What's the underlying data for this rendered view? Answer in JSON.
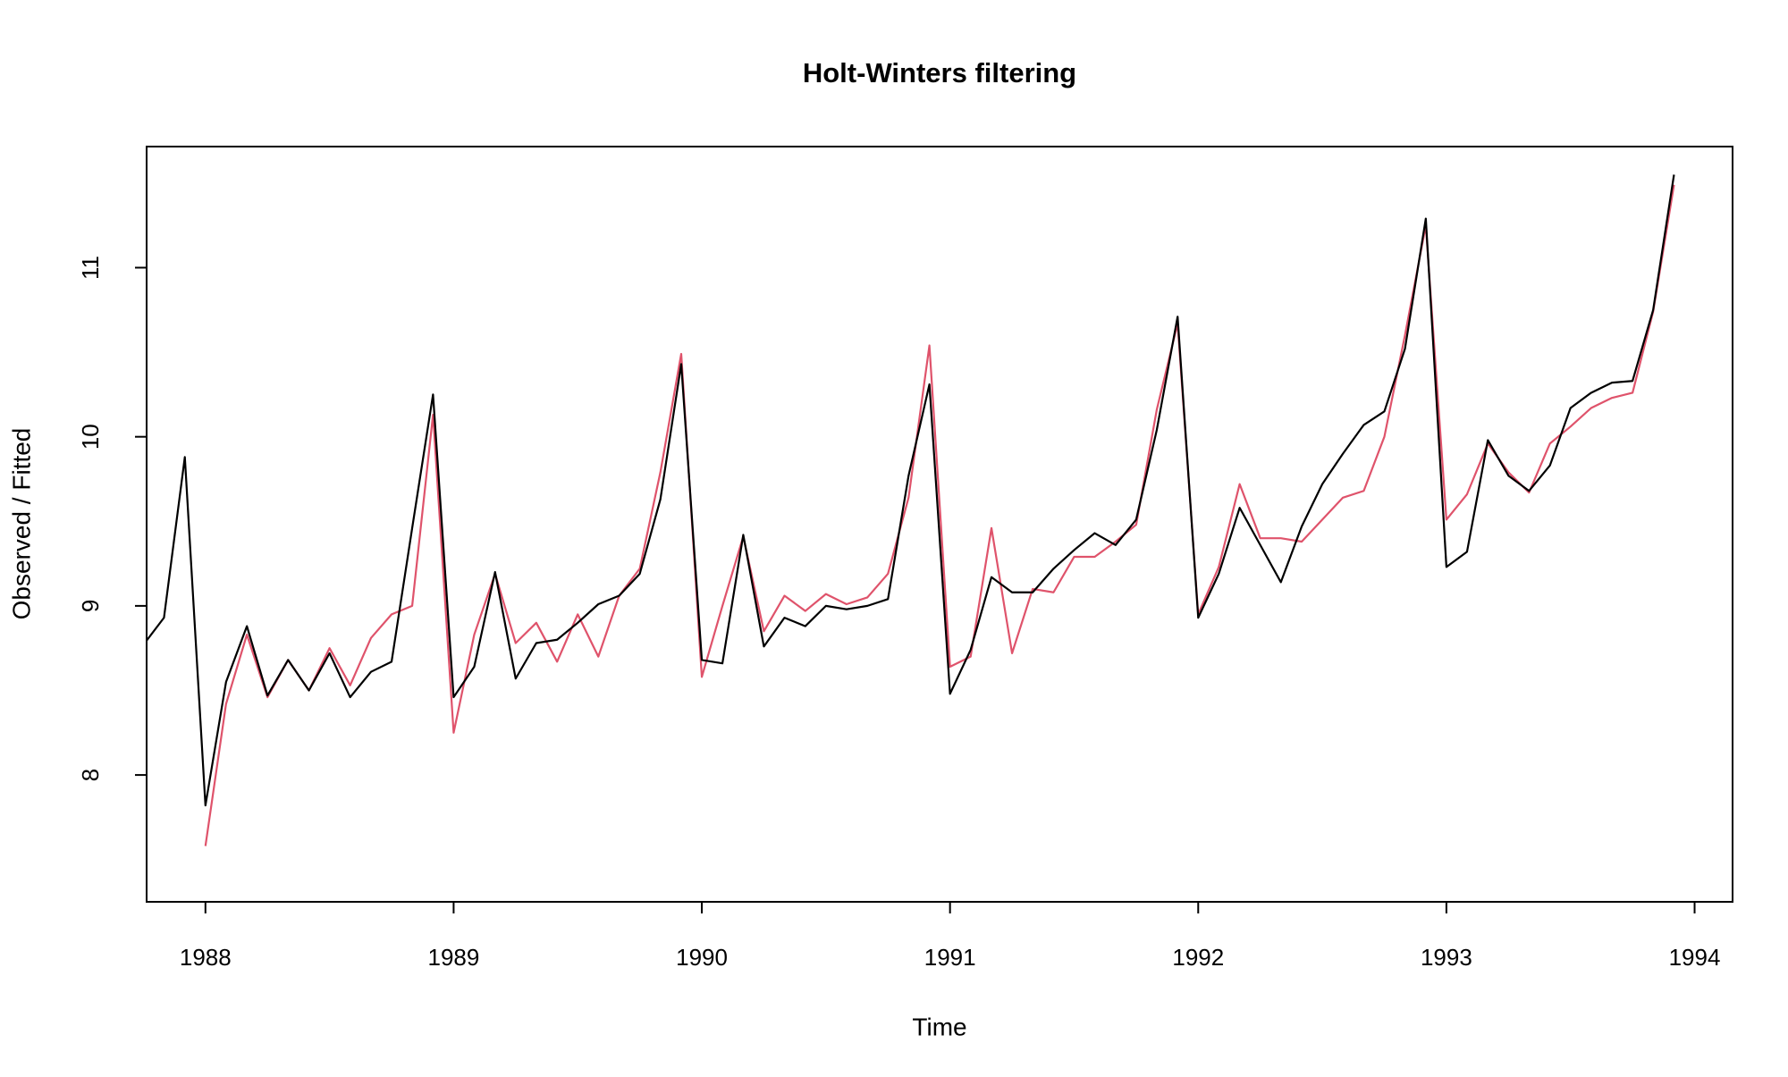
{
  "chart_data": {
    "type": "line",
    "title": "Holt-Winters filtering",
    "xlabel": "Time",
    "ylabel": "Observed / Fitted",
    "x": [
      1987.75,
      1987.833,
      1987.917,
      1988,
      1988.083,
      1988.167,
      1988.25,
      1988.333,
      1988.417,
      1988.5,
      1988.583,
      1988.667,
      1988.75,
      1988.833,
      1988.917,
      1989,
      1989.083,
      1989.167,
      1989.25,
      1989.333,
      1989.417,
      1989.5,
      1989.583,
      1989.667,
      1989.75,
      1989.833,
      1989.917,
      1990,
      1990.083,
      1990.167,
      1990.25,
      1990.333,
      1990.417,
      1990.5,
      1990.583,
      1990.667,
      1990.75,
      1990.833,
      1990.917,
      1991,
      1991.083,
      1991.167,
      1991.25,
      1991.333,
      1991.417,
      1991.5,
      1991.583,
      1991.667,
      1991.75,
      1991.833,
      1991.917,
      1992,
      1992.083,
      1992.167,
      1992.25,
      1992.333,
      1992.417,
      1992.5,
      1992.583,
      1992.667,
      1992.75,
      1992.833,
      1992.917,
      1993,
      1993.083,
      1993.167,
      1993.25,
      1993.333,
      1993.417,
      1993.5,
      1993.583,
      1993.667,
      1993.75,
      1993.833,
      1993.917
    ],
    "series": [
      {
        "color": "#000000",
        "values": [
          8.77,
          8.93,
          9.88,
          7.82,
          8.55,
          8.88,
          8.47,
          8.68,
          8.5,
          8.72,
          8.46,
          8.61,
          8.67,
          9.46,
          10.25,
          8.46,
          8.64,
          9.2,
          8.57,
          8.78,
          8.8,
          8.9,
          9.01,
          9.06,
          9.19,
          9.63,
          10.43,
          8.68,
          8.66,
          9.42,
          8.76,
          8.93,
          8.88,
          9.0,
          8.98,
          9.0,
          9.04,
          9.77,
          10.31,
          8.48,
          8.74,
          9.17,
          9.08,
          9.08,
          9.22,
          9.33,
          9.43,
          9.36,
          9.51,
          10.04,
          10.71,
          8.93,
          9.19,
          9.58,
          9.36,
          9.14,
          9.47,
          9.72,
          9.9,
          10.07,
          10.15,
          10.52,
          11.29,
          9.23,
          9.32,
          9.98,
          9.77,
          9.68,
          9.83,
          10.17,
          10.26,
          10.32,
          10.33,
          10.75,
          11.55
        ]
      },
      {
        "color": "#DF536B",
        "values": [
          null,
          null,
          null,
          7.58,
          8.42,
          8.83,
          8.46,
          8.68,
          8.5,
          8.75,
          8.53,
          8.81,
          8.95,
          9.0,
          10.13,
          8.25,
          8.83,
          9.19,
          8.78,
          8.9,
          8.67,
          8.95,
          8.7,
          9.06,
          9.22,
          9.79,
          10.49,
          8.58,
          9.0,
          9.41,
          8.85,
          9.06,
          8.97,
          9.07,
          9.01,
          9.05,
          9.19,
          9.64,
          10.54,
          8.64,
          8.7,
          9.46,
          8.72,
          9.1,
          9.08,
          9.29,
          9.29,
          9.38,
          9.48,
          10.16,
          10.67,
          8.95,
          9.23,
          9.72,
          9.4,
          9.4,
          9.38,
          9.51,
          9.64,
          9.68,
          10.0,
          10.6,
          11.25,
          9.51,
          9.66,
          9.96,
          9.79,
          9.67,
          9.96,
          10.06,
          10.17,
          10.23,
          10.26,
          10.74,
          11.49
        ]
      }
    ],
    "xlim": [
      1987.763,
      1994.153
    ],
    "xticks": [
      1988,
      1989,
      1990,
      1991,
      1992,
      1993,
      1994
    ],
    "ylim": [
      7.25,
      11.716
    ],
    "yticks": [
      8,
      9,
      10,
      11
    ],
    "grid": false
  }
}
